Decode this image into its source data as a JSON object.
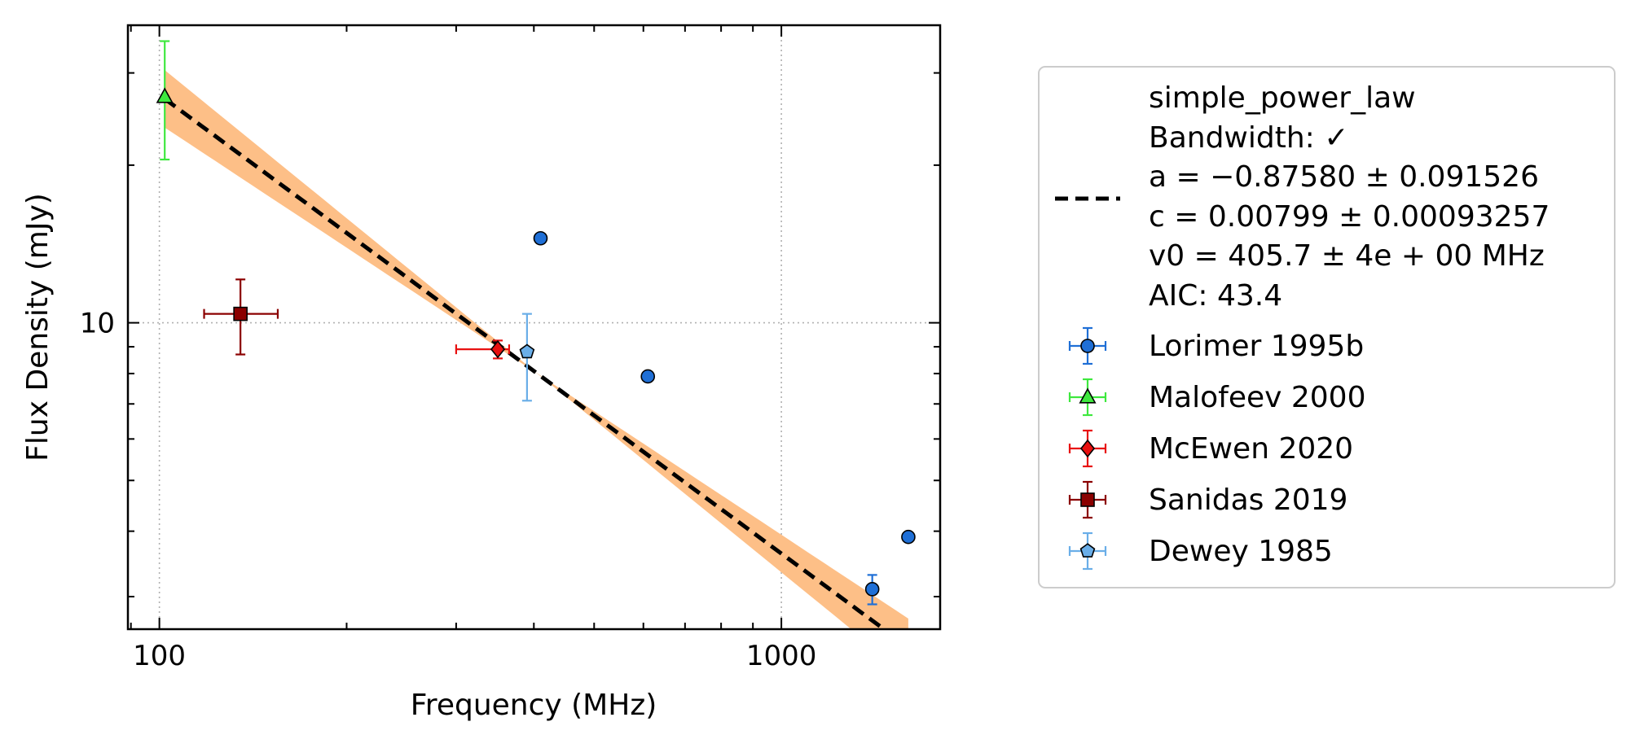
{
  "chart_data": {
    "type": "scatter",
    "x_scale": "log",
    "y_scale": "log",
    "xlabel": "Frequency (MHz)",
    "ylabel": "Flux Density (mJy)",
    "xlim": [
      89,
      1800
    ],
    "ylim": [
      2.6,
      37
    ],
    "x_ticks": [
      100,
      1000
    ],
    "x_tick_labels": [
      "100",
      "1000"
    ],
    "y_ticks": [
      10
    ],
    "y_tick_labels": [
      "10"
    ],
    "grid": true,
    "legend_position": "right, outside plot",
    "fit": {
      "label_lines": [
        "simple_power_law",
        "Bandwidth: ✓",
        "a = −0.87580 ± 0.091526",
        "c = 0.00799 ± 0.00093257",
        "v0 = 405.7 ± 4e + 00 MHz",
        "AIC: 43.4"
      ],
      "a": -0.8758,
      "a_err": 0.091526,
      "c": 0.00799,
      "v0": 405.7,
      "x_range": [
        102,
        1600
      ],
      "line_color": "#000000",
      "band_color": "#fdbf87"
    },
    "series": [
      {
        "name": "Lorimer 1995b",
        "marker": "circle",
        "color": "#1f6fd6",
        "ecolor": "#1f6fd6",
        "points": [
          {
            "x": 410,
            "y": 14.5
          },
          {
            "x": 610,
            "y": 7.9
          },
          {
            "x": 1400,
            "y": 3.1,
            "yerr": [
              0.2,
              0.2
            ]
          },
          {
            "x": 1600,
            "y": 3.9
          }
        ]
      },
      {
        "name": "Malofeev 2000",
        "marker": "triangle",
        "color": "#3ee83e",
        "ecolor": "#3ee83e",
        "points": [
          {
            "x": 102,
            "y": 27,
            "yerr": [
              6.5,
              7.5
            ]
          }
        ]
      },
      {
        "name": "McEwen 2020",
        "marker": "diamond",
        "color": "#e81010",
        "ecolor": "#e81010",
        "points": [
          {
            "x": 350,
            "y": 8.9,
            "xerr": [
              50,
              15
            ],
            "yerr": [
              0.35,
              0.35
            ]
          }
        ]
      },
      {
        "name": "Sanidas 2019",
        "marker": "square",
        "color": "#8b0000",
        "ecolor": "#8b0000",
        "points": [
          {
            "x": 135,
            "y": 10.4,
            "xerr": [
              17,
              20
            ],
            "yerr": [
              1.7,
              1.7
            ]
          }
        ]
      },
      {
        "name": "Dewey 1985",
        "marker": "pentagon",
        "color": "#6aaee8",
        "ecolor": "#6aaee8",
        "points": [
          {
            "x": 390,
            "y": 8.8,
            "yerr": [
              1.7,
              1.6
            ]
          }
        ]
      }
    ]
  }
}
